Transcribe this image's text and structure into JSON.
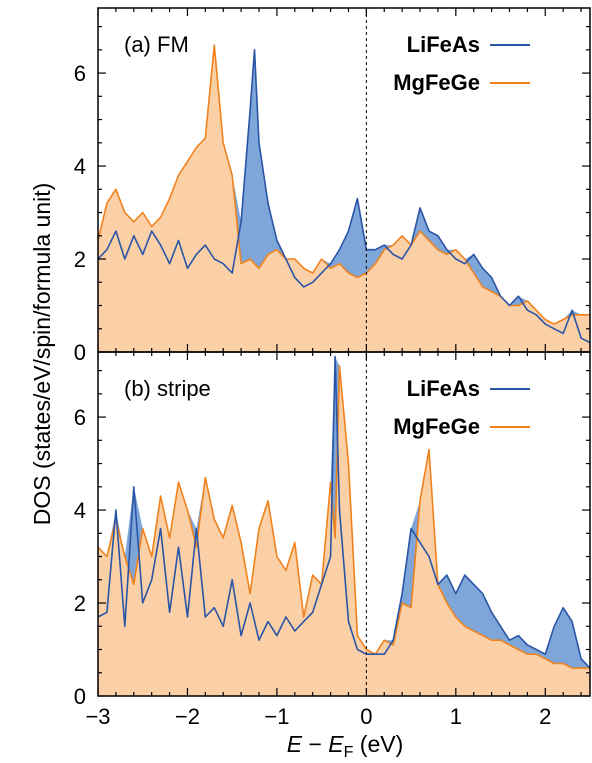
{
  "colors": {
    "LiFeAs": "#2a55a6",
    "MgFeGe": "#f0821e",
    "LiFeAs_fill": "#7fa6d9",
    "MgFeGe_fill": "#fbd0a6"
  },
  "axis": {
    "ylabel": "DOS (states/eV/spin/formula unit)",
    "xlabel_E": "E",
    "xlabel_minus": " − ",
    "xlabel_EF": "E",
    "xlabel_sub": "F",
    "xlabel_unit": " (eV)"
  },
  "chart_data": [
    {
      "type": "area",
      "panel_label": "(a) FM",
      "xlim": [
        -3,
        2.5
      ],
      "ylim": [
        0,
        7.4
      ],
      "xticks": [
        -3,
        -2,
        -1,
        0,
        1,
        2
      ],
      "yticks": [
        0,
        2,
        4,
        6
      ],
      "fermi_level": 0,
      "legend": "top-right",
      "series": [
        {
          "name": "LiFeAs",
          "x": [
            -3.0,
            -2.9,
            -2.8,
            -2.7,
            -2.6,
            -2.5,
            -2.4,
            -2.3,
            -2.2,
            -2.1,
            -2.0,
            -1.9,
            -1.8,
            -1.7,
            -1.6,
            -1.5,
            -1.4,
            -1.3,
            -1.25,
            -1.2,
            -1.1,
            -1.0,
            -0.9,
            -0.8,
            -0.7,
            -0.6,
            -0.5,
            -0.4,
            -0.3,
            -0.2,
            -0.1,
            0.0,
            0.1,
            0.2,
            0.3,
            0.4,
            0.5,
            0.6,
            0.7,
            0.8,
            0.9,
            1.0,
            1.1,
            1.2,
            1.3,
            1.4,
            1.5,
            1.6,
            1.7,
            1.8,
            1.9,
            2.0,
            2.1,
            2.2,
            2.3,
            2.4,
            2.5
          ],
          "y": [
            2.0,
            2.2,
            2.6,
            2.0,
            2.5,
            2.1,
            2.6,
            2.3,
            1.9,
            2.4,
            1.8,
            2.1,
            2.3,
            2.0,
            1.9,
            1.7,
            2.8,
            5.2,
            6.5,
            4.5,
            3.2,
            2.4,
            2.0,
            1.6,
            1.4,
            1.5,
            1.7,
            1.9,
            2.2,
            2.6,
            3.3,
            2.2,
            2.2,
            2.3,
            2.1,
            2.0,
            2.3,
            3.1,
            2.6,
            2.5,
            2.2,
            2.0,
            1.9,
            2.1,
            1.8,
            1.6,
            1.2,
            1.0,
            1.2,
            0.9,
            0.8,
            0.6,
            0.5,
            0.4,
            0.9,
            0.3,
            0.2
          ]
        },
        {
          "name": "MgFeGe",
          "x": [
            -3.0,
            -2.9,
            -2.8,
            -2.7,
            -2.6,
            -2.5,
            -2.4,
            -2.3,
            -2.2,
            -2.1,
            -2.0,
            -1.9,
            -1.8,
            -1.7,
            -1.6,
            -1.5,
            -1.4,
            -1.3,
            -1.25,
            -1.2,
            -1.1,
            -1.0,
            -0.9,
            -0.8,
            -0.7,
            -0.6,
            -0.5,
            -0.4,
            -0.3,
            -0.2,
            -0.1,
            0.0,
            0.1,
            0.2,
            0.3,
            0.4,
            0.5,
            0.6,
            0.7,
            0.8,
            0.9,
            1.0,
            1.1,
            1.2,
            1.3,
            1.4,
            1.5,
            1.6,
            1.7,
            1.8,
            1.9,
            2.0,
            2.1,
            2.2,
            2.3,
            2.4,
            2.5
          ],
          "y": [
            2.4,
            3.2,
            3.5,
            3.0,
            2.8,
            3.0,
            2.7,
            2.9,
            3.3,
            3.8,
            4.1,
            4.4,
            4.6,
            6.6,
            4.5,
            3.8,
            1.9,
            2.0,
            1.9,
            1.8,
            2.1,
            2.2,
            2.0,
            2.0,
            1.8,
            1.7,
            2.0,
            1.8,
            1.9,
            1.7,
            1.6,
            1.7,
            1.9,
            2.2,
            2.3,
            2.5,
            2.3,
            2.6,
            2.4,
            2.2,
            2.1,
            2.2,
            2.0,
            1.7,
            1.4,
            1.3,
            1.2,
            1.0,
            1.0,
            1.1,
            0.9,
            0.7,
            0.6,
            0.7,
            0.8,
            0.8,
            0.8
          ]
        }
      ]
    },
    {
      "type": "area",
      "panel_label": "(b) stripe",
      "xlim": [
        -3,
        2.5
      ],
      "ylim": [
        0,
        7.4
      ],
      "xticks": [
        -3,
        -2,
        -1,
        0,
        1,
        2
      ],
      "yticks": [
        0,
        2,
        4,
        6
      ],
      "fermi_level": 0,
      "legend": "top-right",
      "series": [
        {
          "name": "LiFeAs",
          "x": [
            -3.0,
            -2.9,
            -2.8,
            -2.7,
            -2.6,
            -2.5,
            -2.4,
            -2.3,
            -2.2,
            -2.1,
            -2.0,
            -1.9,
            -1.8,
            -1.7,
            -1.6,
            -1.5,
            -1.4,
            -1.3,
            -1.2,
            -1.1,
            -1.0,
            -0.9,
            -0.8,
            -0.7,
            -0.6,
            -0.5,
            -0.4,
            -0.35,
            -0.3,
            -0.2,
            -0.1,
            0.0,
            0.1,
            0.2,
            0.3,
            0.4,
            0.5,
            0.6,
            0.7,
            0.8,
            0.9,
            1.0,
            1.1,
            1.2,
            1.3,
            1.4,
            1.5,
            1.6,
            1.7,
            1.8,
            1.9,
            2.0,
            2.1,
            2.2,
            2.3,
            2.4,
            2.5
          ],
          "y": [
            1.7,
            1.8,
            4.0,
            1.5,
            4.5,
            2.0,
            2.5,
            3.6,
            1.8,
            3.2,
            1.7,
            3.6,
            1.7,
            1.9,
            1.5,
            2.5,
            1.3,
            2.0,
            1.2,
            1.6,
            1.3,
            1.7,
            1.4,
            1.6,
            1.8,
            2.4,
            3.0,
            7.3,
            4.0,
            1.6,
            1.0,
            0.9,
            0.9,
            0.9,
            1.2,
            2.2,
            3.6,
            3.3,
            3.0,
            2.4,
            2.6,
            2.2,
            2.6,
            2.4,
            2.2,
            1.8,
            1.5,
            1.2,
            1.3,
            1.1,
            1.0,
            0.9,
            1.5,
            1.9,
            1.6,
            0.8,
            0.6
          ]
        },
        {
          "name": "MgFeGe",
          "x": [
            -3.0,
            -2.9,
            -2.8,
            -2.7,
            -2.6,
            -2.5,
            -2.4,
            -2.3,
            -2.2,
            -2.1,
            -2.0,
            -1.9,
            -1.8,
            -1.7,
            -1.6,
            -1.5,
            -1.4,
            -1.3,
            -1.2,
            -1.1,
            -1.0,
            -0.9,
            -0.8,
            -0.7,
            -0.6,
            -0.5,
            -0.4,
            -0.35,
            -0.3,
            -0.2,
            -0.1,
            0.0,
            0.1,
            0.2,
            0.3,
            0.4,
            0.5,
            0.6,
            0.7,
            0.8,
            0.9,
            1.0,
            1.1,
            1.2,
            1.3,
            1.4,
            1.5,
            1.6,
            1.7,
            1.8,
            1.9,
            2.0,
            2.1,
            2.2,
            2.3,
            2.4,
            2.5
          ],
          "y": [
            3.2,
            3.0,
            3.8,
            3.0,
            2.4,
            3.6,
            3.0,
            4.3,
            3.4,
            4.6,
            4.0,
            3.2,
            4.7,
            3.8,
            3.4,
            4.1,
            3.3,
            2.2,
            3.6,
            4.2,
            3.0,
            2.7,
            3.3,
            1.7,
            2.6,
            2.4,
            4.6,
            3.4,
            7.1,
            5.0,
            1.3,
            1.0,
            0.9,
            1.2,
            1.1,
            2.0,
            1.9,
            4.2,
            5.3,
            2.4,
            2.0,
            1.7,
            1.5,
            1.4,
            1.3,
            1.2,
            1.2,
            1.1,
            1.0,
            0.9,
            0.9,
            0.8,
            0.7,
            0.7,
            0.6,
            0.6,
            0.6
          ]
        }
      ]
    }
  ]
}
